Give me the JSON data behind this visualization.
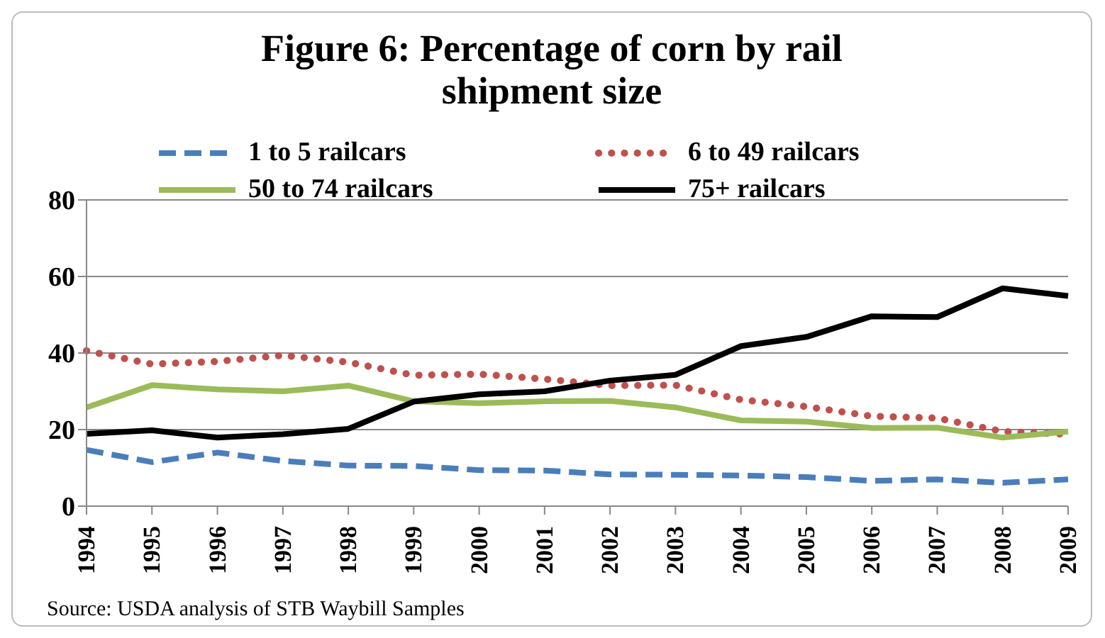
{
  "chart_data": {
    "type": "line",
    "title": "Figure 6:  Percentage of corn by rail shipment size",
    "categories": [
      "1994",
      "1995",
      "1996",
      "1997",
      "1998",
      "1999",
      "2000",
      "2001",
      "2002",
      "2003",
      "2004",
      "2005",
      "2006",
      "2007",
      "2008",
      "2009"
    ],
    "series": [
      {
        "name": "1 to 5 railcars",
        "color": "#4a7ebb",
        "line_style": "dashed",
        "values": [
          14.7,
          11.5,
          14,
          11.8,
          10.6,
          10.5,
          9.4,
          9.3,
          8.3,
          8.2,
          8,
          7.6,
          6.6,
          7,
          6.1,
          7
        ]
      },
      {
        "name": "6 to 49 railcars",
        "color": "#c0504d",
        "line_style": "dotted",
        "values": [
          40.6,
          37.1,
          37.8,
          39.4,
          37.6,
          34.2,
          34.5,
          33.2,
          31.5,
          31.6,
          27.8,
          26,
          23.5,
          23,
          19.5,
          18.8
        ]
      },
      {
        "name": "50 to 74 railcars",
        "color": "#9bbb59",
        "line_style": "solid",
        "values": [
          25.8,
          31.6,
          30.5,
          30,
          31.5,
          27.4,
          26.9,
          27.4,
          27.5,
          25.8,
          22.4,
          22.1,
          20.4,
          20.5,
          17.9,
          19.5
        ]
      },
      {
        "name": "75+ railcars",
        "color": "#000000",
        "line_style": "solid",
        "values": [
          18.9,
          19.8,
          17.9,
          18.8,
          20.2,
          27.3,
          29.2,
          30,
          32.8,
          34.3,
          41.8,
          44.2,
          49.6,
          49.4,
          56.9,
          54.9
        ]
      }
    ],
    "ylim": [
      0,
      80
    ],
    "yticks": [
      0,
      20,
      40,
      60,
      80
    ],
    "grid": "y",
    "legend": "top",
    "marker": "none",
    "annotations": [
      "Source:  USDA analysis of STB Waybill Samples"
    ]
  }
}
